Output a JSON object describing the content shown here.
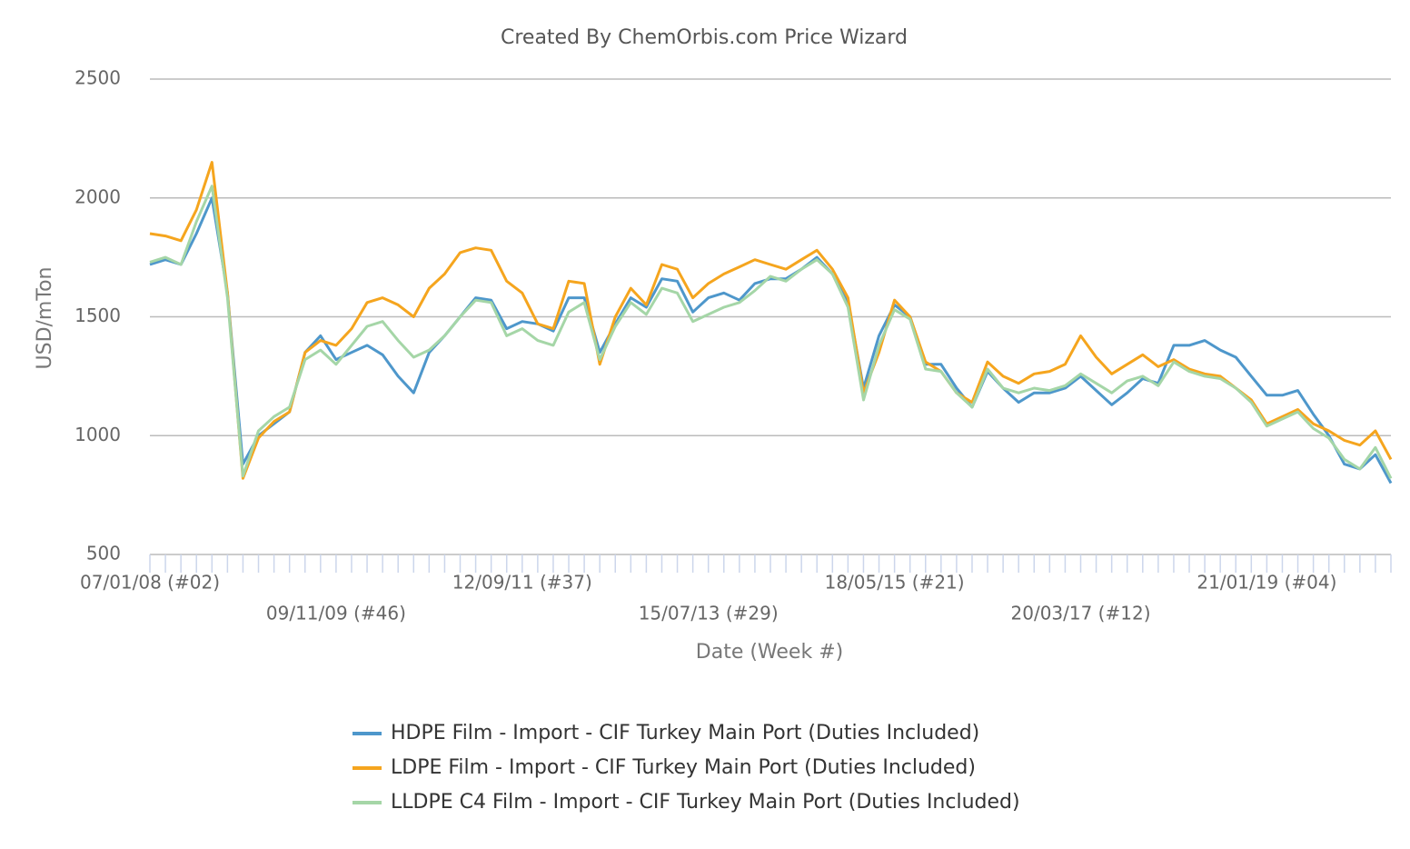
{
  "chart_data": {
    "type": "line",
    "title": "Created By ChemOrbis.com Price Wizard",
    "x_label": "Date (Week #)",
    "y_label": "USD/mTon",
    "categories": [
      "07/01/08 (#02)",
      null,
      null,
      null,
      null,
      null,
      null,
      null,
      null,
      null,
      null,
      null,
      "09/11/09 (#46)",
      null,
      null,
      null,
      null,
      null,
      null,
      null,
      null,
      null,
      null,
      null,
      "12/09/11 (#37)",
      null,
      null,
      null,
      null,
      null,
      null,
      null,
      null,
      null,
      null,
      null,
      "15/07/13 (#29)",
      null,
      null,
      null,
      null,
      null,
      null,
      null,
      null,
      null,
      null,
      null,
      "18/05/15 (#21)",
      null,
      null,
      null,
      null,
      null,
      null,
      null,
      null,
      null,
      null,
      null,
      "20/03/17 (#12)",
      null,
      null,
      null,
      null,
      null,
      null,
      null,
      null,
      null,
      null,
      null,
      "21/01/19 (#04)",
      null,
      null,
      null,
      null,
      null,
      null,
      null,
      null
    ],
    "ylim": [
      500,
      2500
    ],
    "yticks": [
      500,
      1000,
      1500,
      2000,
      2500
    ],
    "grid": true,
    "series": [
      {
        "name": "HDPE Film - Import - CIF Turkey Main Port (Duties Included)",
        "color": "#4e97cb",
        "values": [
          1720,
          1740,
          1720,
          1850,
          2000,
          1600,
          880,
          1000,
          1050,
          1100,
          1350,
          1420,
          1320,
          1350,
          1380,
          1340,
          1250,
          1180,
          1350,
          1420,
          1500,
          1580,
          1570,
          1450,
          1480,
          1470,
          1440,
          1580,
          1580,
          1350,
          1470,
          1580,
          1540,
          1660,
          1650,
          1520,
          1580,
          1600,
          1570,
          1640,
          1660,
          1660,
          1700,
          1750,
          1680,
          1560,
          1200,
          1420,
          1550,
          1500,
          1300,
          1300,
          1200,
          1120,
          1270,
          1200,
          1140,
          1180,
          1180,
          1200,
          1250,
          1190,
          1130,
          1180,
          1240,
          1220,
          1380,
          1380,
          1400,
          1360,
          1330,
          1250,
          1170,
          1170,
          1190,
          1090,
          1000,
          880,
          860,
          920,
          800
        ]
      },
      {
        "name": "LDPE Film - Import - CIF Turkey Main Port (Duties Included)",
        "color": "#f5a51e",
        "values": [
          1850,
          1840,
          1820,
          1950,
          2150,
          1600,
          820,
          990,
          1060,
          1100,
          1350,
          1400,
          1380,
          1450,
          1560,
          1580,
          1550,
          1500,
          1620,
          1680,
          1770,
          1790,
          1780,
          1650,
          1600,
          1470,
          1450,
          1650,
          1640,
          1300,
          1500,
          1620,
          1550,
          1720,
          1700,
          1580,
          1640,
          1680,
          1710,
          1740,
          1720,
          1700,
          1740,
          1780,
          1700,
          1580,
          1180,
          1350,
          1570,
          1500,
          1310,
          1270,
          1180,
          1140,
          1310,
          1250,
          1220,
          1260,
          1270,
          1300,
          1420,
          1330,
          1260,
          1300,
          1340,
          1290,
          1320,
          1280,
          1260,
          1250,
          1200,
          1150,
          1050,
          1080,
          1110,
          1050,
          1020,
          980,
          960,
          1020,
          900
        ]
      },
      {
        "name": "LLDPE C4 Film - Import - CIF Turkey Main Port (Duties Included)",
        "color": "#a5d6a7",
        "values": [
          1730,
          1750,
          1720,
          1900,
          2050,
          1580,
          830,
          1020,
          1080,
          1120,
          1320,
          1360,
          1300,
          1380,
          1460,
          1480,
          1400,
          1330,
          1360,
          1420,
          1500,
          1570,
          1560,
          1420,
          1450,
          1400,
          1380,
          1520,
          1560,
          1320,
          1460,
          1560,
          1510,
          1620,
          1600,
          1480,
          1510,
          1540,
          1560,
          1610,
          1670,
          1650,
          1700,
          1740,
          1680,
          1540,
          1150,
          1380,
          1530,
          1490,
          1280,
          1270,
          1180,
          1120,
          1280,
          1200,
          1180,
          1200,
          1190,
          1210,
          1260,
          1220,
          1180,
          1230,
          1250,
          1210,
          1310,
          1270,
          1250,
          1240,
          1200,
          1140,
          1040,
          1070,
          1100,
          1030,
          990,
          900,
          860,
          950,
          820
        ]
      }
    ]
  }
}
